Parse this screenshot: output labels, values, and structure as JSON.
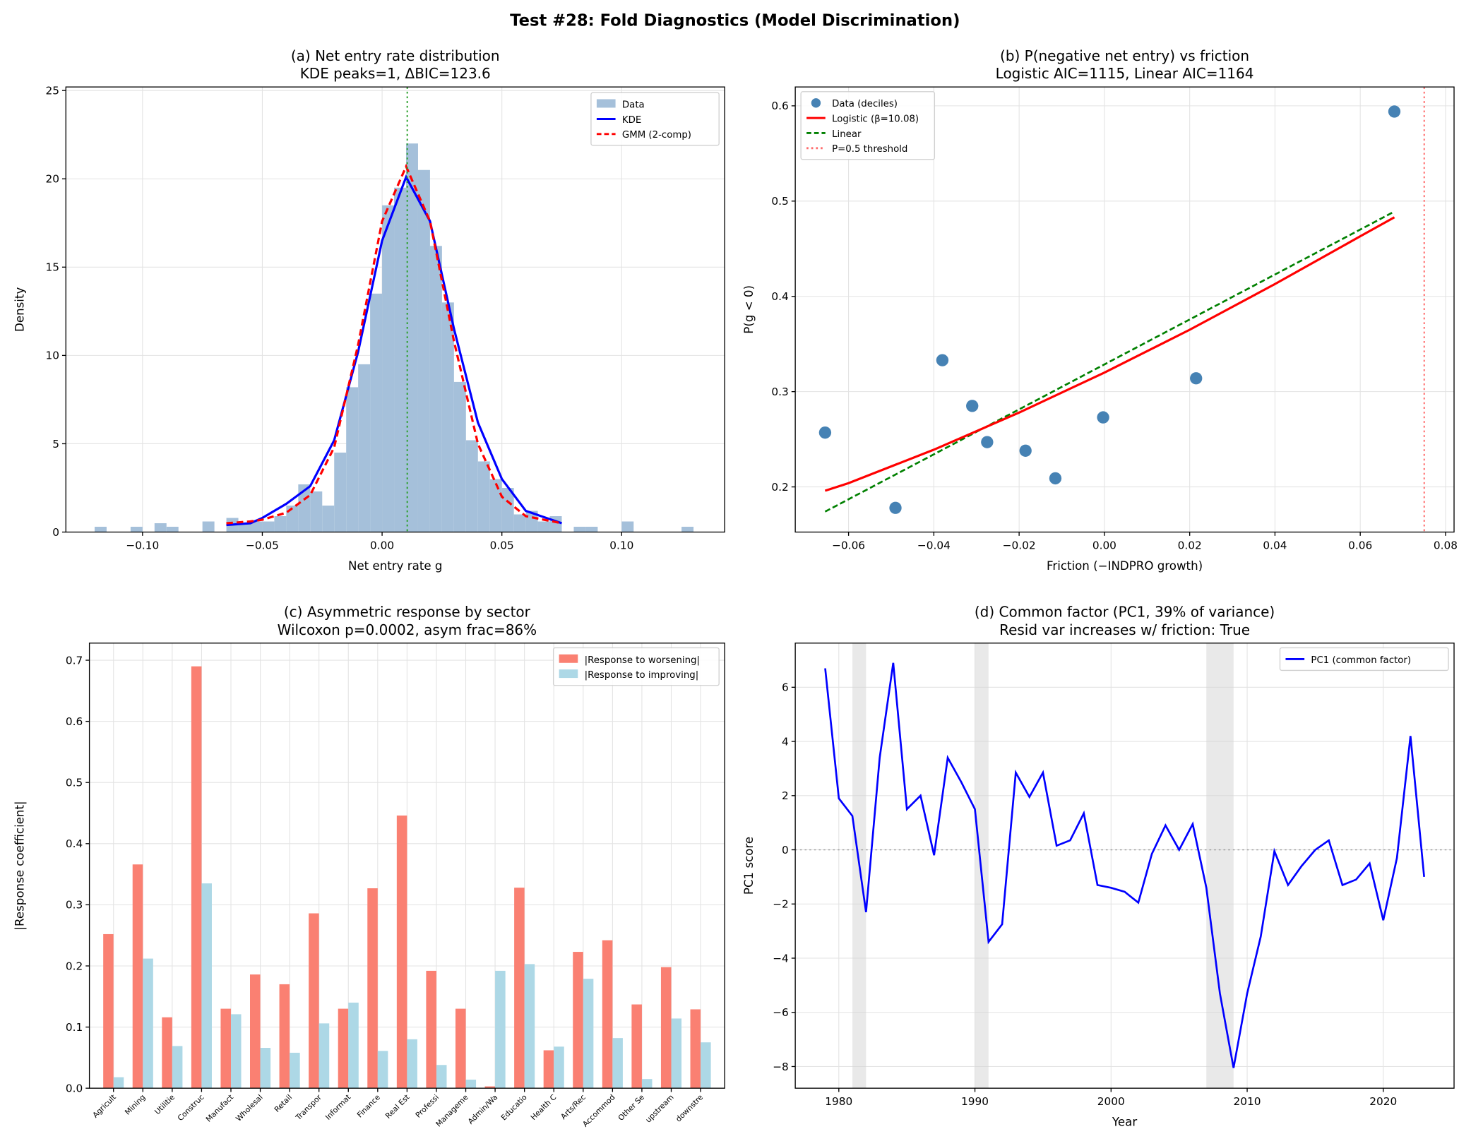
{
  "suptitle": "Test #28: Fold Diagnostics (Model Discrimination)",
  "chart_data": [
    {
      "type": "bar",
      "subtype": "histogram",
      "title_line1": "(a) Net entry rate distribution",
      "title_line2": "KDE peaks=1, ΔBIC=123.6",
      "xlabel": "Net entry rate g",
      "ylabel": "Density",
      "xlim": [
        -0.132,
        0.143
      ],
      "ylim": [
        0,
        25.2
      ],
      "xticks": [
        "−0.10",
        "−0.05",
        "0.00",
        "0.05",
        "0.10"
      ],
      "xtick_values": [
        -0.1,
        -0.05,
        0,
        0.05,
        0.1
      ],
      "yticks": [
        "0",
        "5",
        "10",
        "15",
        "20",
        "25"
      ],
      "ytick_values": [
        0,
        5,
        10,
        15,
        20,
        25
      ],
      "grid": true,
      "legend_position": "top-right",
      "legend": [
        "Data",
        "KDE",
        "GMM (2-comp)"
      ],
      "colors": {
        "hist": "#a5c0da",
        "kde": "#0000ff",
        "gmm": "#ff0000",
        "vline": "#2ca02c"
      },
      "bin_width": 0.005,
      "bin_starts": [
        -0.12,
        -0.115,
        -0.11,
        -0.105,
        -0.1,
        -0.095,
        -0.09,
        -0.085,
        -0.08,
        -0.075,
        -0.07,
        -0.065,
        -0.06,
        -0.055,
        -0.05,
        -0.045,
        -0.04,
        -0.035,
        -0.03,
        -0.025,
        -0.02,
        -0.015,
        -0.01,
        -0.005,
        0.0,
        0.005,
        0.01,
        0.015,
        0.02,
        0.025,
        0.03,
        0.035,
        0.04,
        0.045,
        0.05,
        0.055,
        0.06,
        0.065,
        0.07,
        0.075,
        0.08,
        0.085,
        0.09,
        0.095,
        0.1,
        0.105,
        0.11,
        0.115,
        0.12,
        0.125
      ],
      "bin_values": [
        0.3,
        0,
        0,
        0.3,
        0,
        0.5,
        0.3,
        0,
        0,
        0.6,
        0,
        0.8,
        0.5,
        0.6,
        0.6,
        0.9,
        1.5,
        2.7,
        2.3,
        1.5,
        4.5,
        8.2,
        9.5,
        13.5,
        18.5,
        19.5,
        22,
        20.5,
        16.2,
        13,
        8.5,
        5.2,
        4,
        3,
        2.5,
        1.0,
        1.2,
        0.6,
        0.9,
        0,
        0.3,
        0.3,
        0,
        0,
        0.6,
        0,
        0,
        0,
        0,
        0.3
      ],
      "kde": {
        "x": [
          -0.065,
          -0.055,
          -0.05,
          -0.04,
          -0.03,
          -0.02,
          -0.01,
          0,
          0.01,
          0.02,
          0.03,
          0.04,
          0.05,
          0.06,
          0.075
        ],
        "y": [
          0.4,
          0.5,
          0.8,
          1.6,
          2.6,
          5.2,
          10.2,
          16.5,
          20.1,
          17.6,
          11.5,
          6.2,
          3.0,
          1.2,
          0.5
        ]
      },
      "gmm": {
        "x": [
          -0.065,
          -0.055,
          -0.05,
          -0.04,
          -0.03,
          -0.02,
          -0.01,
          0,
          0.01,
          0.02,
          0.03,
          0.04,
          0.05,
          0.06,
          0.075
        ],
        "y": [
          0.5,
          0.6,
          0.7,
          1.1,
          2.1,
          4.8,
          10.6,
          17.6,
          20.7,
          17.6,
          10.8,
          5.0,
          2.0,
          0.9,
          0.5
        ]
      },
      "vline_x": 0.0105
    },
    {
      "type": "scatter",
      "title_line1": "(b) P(negative net entry) vs friction",
      "title_line2": "Logistic AIC=1115, Linear AIC=1164",
      "xlabel": "Friction (−INDPRO growth)",
      "ylabel": "P(g < 0)",
      "xlim": [
        -0.0725,
        0.082
      ],
      "ylim": [
        0.1526,
        0.6198
      ],
      "xticks": [
        "−0.06",
        "−0.04",
        "−0.02",
        "0.00",
        "0.02",
        "0.04",
        "0.06",
        "0.08"
      ],
      "xtick_values": [
        -0.06,
        -0.04,
        -0.02,
        0,
        0.02,
        0.04,
        0.06,
        0.08
      ],
      "yticks": [
        "0.2",
        "0.3",
        "0.4",
        "0.5",
        "0.6"
      ],
      "ytick_values": [
        0.2,
        0.3,
        0.4,
        0.5,
        0.6
      ],
      "grid": true,
      "legend_position": "top-left",
      "legend": [
        "Data (deciles)",
        "Logistic (β=10.08)",
        "Linear",
        "P=0.5 threshold"
      ],
      "colors": {
        "points": "#4682b4",
        "logistic": "#ff0000",
        "linear": "#008000",
        "threshold": "#ff6b6b"
      },
      "points": {
        "x": [
          -0.0655,
          -0.049,
          -0.038,
          -0.031,
          -0.0275,
          -0.0185,
          -0.0115,
          -0.0003,
          0.0215,
          0.068
        ],
        "y": [
          0.257,
          0.178,
          0.333,
          0.285,
          0.247,
          0.238,
          0.209,
          0.273,
          0.314,
          0.594
        ]
      },
      "logistic": {
        "x": [
          -0.0655,
          -0.06,
          -0.04,
          -0.02,
          0,
          0.02,
          0.04,
          0.06,
          0.068
        ],
        "y": [
          0.196,
          0.204,
          0.239,
          0.278,
          0.32,
          0.365,
          0.413,
          0.463,
          0.483
        ]
      },
      "linear": {
        "x": [
          -0.0655,
          0.068
        ],
        "y": [
          0.174,
          0.489
        ]
      },
      "threshold_x": 0.075
    },
    {
      "type": "bar",
      "title_line1": "(c) Asymmetric response by sector",
      "title_line2": "Wilcoxon p=0.0002, asym frac=86%",
      "xlabel": "",
      "ylabel": "|Response coefficient|",
      "ylim": [
        0,
        0.728
      ],
      "yticks": [
        "0.0",
        "0.1",
        "0.2",
        "0.3",
        "0.4",
        "0.5",
        "0.6",
        "0.7"
      ],
      "ytick_values": [
        0,
        0.1,
        0.2,
        0.3,
        0.4,
        0.5,
        0.6,
        0.7
      ],
      "grid": true,
      "legend_position": "top-right",
      "categories": [
        "Agricult",
        "Mining",
        "Utilitie",
        "Construc",
        "Manufact",
        "Wholesal",
        "Retail",
        "Transpor",
        "Informat",
        "Finance",
        "Real Est",
        "Professi",
        "Manageme",
        "Admin/Wa",
        "Educatio",
        "Health C",
        "Arts/Rec",
        "Accommod",
        "Other Se",
        "upstream",
        "downstre"
      ],
      "series": [
        {
          "name": "|Response to worsening|",
          "color": "#fa8072",
          "values": [
            0.252,
            0.366,
            0.116,
            0.69,
            0.13,
            0.186,
            0.17,
            0.286,
            0.13,
            0.327,
            0.446,
            0.192,
            0.13,
            0.003,
            0.328,
            0.062,
            0.223,
            0.242,
            0.137,
            0.198,
            0.129
          ]
        },
        {
          "name": "|Response to improving|",
          "color": "#add8e6",
          "values": [
            0.018,
            0.212,
            0.069,
            0.335,
            0.121,
            0.066,
            0.058,
            0.106,
            0.14,
            0.061,
            0.08,
            0.038,
            0.014,
            0.192,
            0.203,
            0.068,
            0.179,
            0.082,
            0.015,
            0.114,
            0.075
          ]
        }
      ]
    },
    {
      "type": "line",
      "title_line1": "(d) Common factor (PC1, 39% of variance)",
      "title_line2": "Resid var increases w/ friction: True",
      "xlabel": "Year",
      "ylabel": "PC1 score",
      "xlim": [
        1976.8,
        2025.2
      ],
      "ylim": [
        -8.8,
        7.63
      ],
      "xticks": [
        "1980",
        "1990",
        "2000",
        "2010",
        "2020"
      ],
      "xtick_values": [
        1980,
        1990,
        2000,
        2010,
        2020
      ],
      "yticks": [
        "−8",
        "−6",
        "−4",
        "−2",
        "0",
        "2",
        "4",
        "6"
      ],
      "ytick_values": [
        -8,
        -6,
        -4,
        -2,
        0,
        2,
        4,
        6
      ],
      "grid": true,
      "legend_position": "top-right",
      "legend": [
        "PC1 (common factor)"
      ],
      "colors": {
        "line": "#0000ff",
        "shade": "#d3d3d3",
        "zero": "#999999"
      },
      "shaded_periods": [
        [
          1981,
          1982
        ],
        [
          1990,
          1991
        ],
        [
          2007,
          2009
        ]
      ],
      "x": [
        1979,
        1980,
        1981,
        1982,
        1983,
        1984,
        1985,
        1986,
        1987,
        1988,
        1989,
        1990,
        1991,
        1992,
        1993,
        1994,
        1995,
        1996,
        1997,
        1998,
        1999,
        2000,
        2001,
        2002,
        2003,
        2004,
        2005,
        2006,
        2007,
        2008,
        2009,
        2010,
        2011,
        2012,
        2013,
        2014,
        2015,
        2016,
        2017,
        2018,
        2019,
        2020,
        2021,
        2022,
        2023
      ],
      "y": [
        6.7,
        1.9,
        1.25,
        -2.3,
        3.4,
        6.9,
        1.5,
        2.0,
        -0.2,
        3.4,
        2.5,
        1.5,
        -3.4,
        -2.75,
        2.85,
        1.95,
        2.85,
        0.15,
        0.35,
        1.35,
        -1.3,
        -1.4,
        -1.55,
        -1.95,
        -0.15,
        0.9,
        0,
        0.95,
        -1.4,
        -5.3,
        -8.05,
        -5.3,
        -3.2,
        -0.05,
        -1.3,
        -0.6,
        0,
        0.35,
        -1.3,
        -1.1,
        -0.5,
        -2.6,
        -0.3,
        4.2,
        -1.0
      ]
    }
  ]
}
